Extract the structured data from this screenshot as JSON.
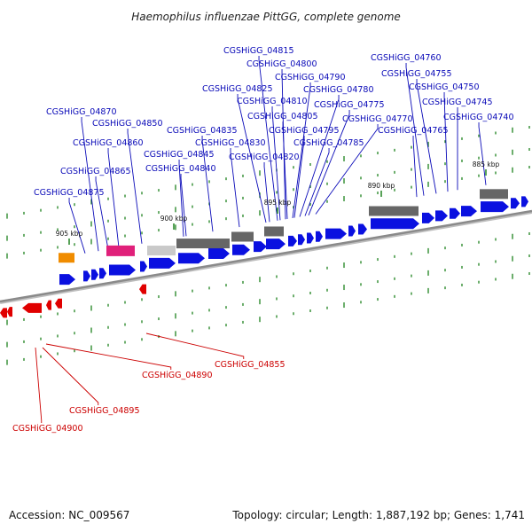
{
  "header": {
    "title": "Haemophilus influenzae PittGG, complete genome"
  },
  "footer": {
    "accession": "Accession: NC_009567",
    "summary": "Topology: circular; Length: 1,887,192 bp; Genes: 1,741"
  },
  "colors": {
    "forward_gene": "#0a10e0",
    "reverse_gene": "#e00000",
    "forward_label": "#0a0ab8",
    "reverse_label": "#cc0000",
    "misc_feature": "#666666",
    "light_feature": "#c9c9c9",
    "orange_feature": "#f08c00",
    "magenta_feature": "#e0207a",
    "tick_green": "#2e8b2e",
    "backbone": "#8a8a8a"
  },
  "kbp_markers": [
    "885 kbp",
    "890 kbp",
    "895 kbp",
    "900 kbp",
    "905 kbp"
  ],
  "forward_labels": [
    "CGSHiGG_04815",
    "CGSHiGG_04800",
    "CGSHiGG_04790",
    "CGSHiGG_04825",
    "CGSHiGG_04780",
    "CGSHiGG_04810",
    "CGSHiGG_04775",
    "CGSHiGG_04805",
    "CGSHiGG_04770",
    "CGSHiGG_04835",
    "CGSHiGG_04795",
    "CGSHiGG_04830",
    "CGSHiGG_04785",
    "CGSHiGG_04820",
    "CGSHiGG_04870",
    "CGSHiGG_04850",
    "CGSHiGG_04860",
    "CGSHiGG_04845",
    "CGSHiGG_04865",
    "CGSHiGG_04840",
    "CGSHiGG_04875",
    "CGSHiGG_04760",
    "CGSHiGG_04755",
    "CGSHiGG_04750",
    "CGSHiGG_04745",
    "CGSHiGG_04765",
    "CGSHiGG_04740"
  ],
  "reverse_labels": [
    "CGSHiGG_04855",
    "CGSHiGG_04890",
    "CGSHiGG_04895",
    "CGSHiGG_04900"
  ]
}
